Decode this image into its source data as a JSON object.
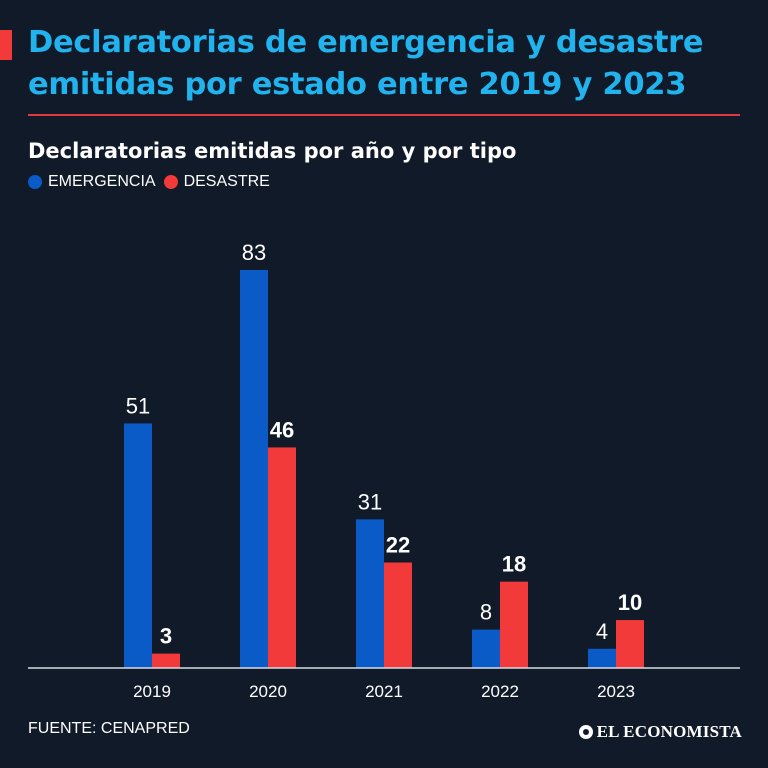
{
  "headline": "Declaratorias de emergencia y desastre emitidas por estado entre 2019 y 2023",
  "subtitle": "Declaratorias emitidas por año y por tipo",
  "legend": [
    {
      "label": "EMERGENCIA",
      "color": "#0a5bc8"
    },
    {
      "label": "DESASTRE",
      "color": "#f23a3a"
    }
  ],
  "source": "FUENTE: CENAPRED",
  "brand": "EL ECONOMISTA",
  "colors": {
    "background": "#111a28",
    "headline": "#21b3ee",
    "accent": "#e8343b",
    "emergencia": "#0a5bc8",
    "desastre": "#f23a3a"
  },
  "chart_data": {
    "type": "bar",
    "categories": [
      "2019",
      "2020",
      "2021",
      "2022",
      "2023"
    ],
    "series": [
      {
        "name": "EMERGENCIA",
        "values": [
          51,
          83,
          31,
          8,
          4
        ],
        "color": "#0a5bc8",
        "label_weight": "normal"
      },
      {
        "name": "DESASTRE",
        "values": [
          3,
          46,
          22,
          18,
          10
        ],
        "color": "#f23a3a",
        "label_weight": "bold"
      }
    ],
    "title": "Declaratorias emitidas por año y por tipo",
    "xlabel": "",
    "ylabel": "",
    "ylim": [
      0,
      83
    ],
    "grid": false,
    "legend_position": "top-left"
  }
}
